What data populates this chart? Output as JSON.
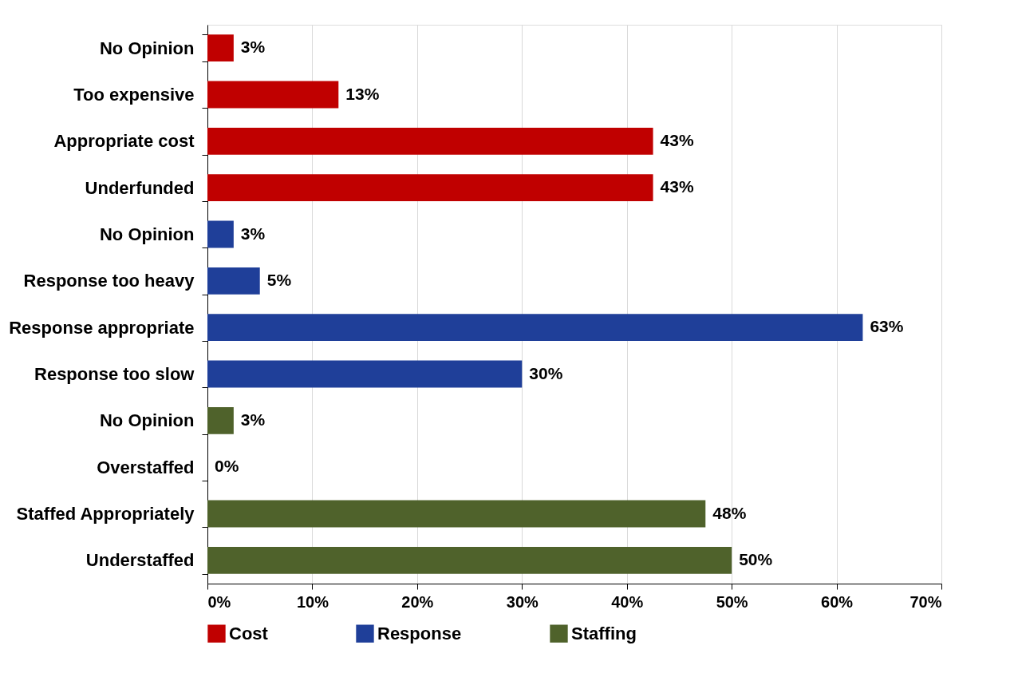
{
  "chart_data": {
    "type": "bar",
    "orientation": "horizontal",
    "categories": [
      "No Opinion",
      "Too expensive",
      "Appropriate cost",
      "Underfunded",
      "No Opinion",
      "Response too heavy",
      "Response appropriate",
      "Response too slow",
      "No Opinion",
      "Overstaffed",
      "Staffed Appropriately",
      "Understaffed"
    ],
    "series": [
      {
        "name": "Cost",
        "color": "#c00000",
        "values": [
          2.5,
          12.5,
          42.5,
          42.5,
          null,
          null,
          null,
          null,
          null,
          null,
          null,
          null
        ],
        "value_labels": [
          "3%",
          "13%",
          "43%",
          "43%",
          null,
          null,
          null,
          null,
          null,
          null,
          null,
          null
        ]
      },
      {
        "name": "Response",
        "color": "#1f3f99",
        "values": [
          null,
          null,
          null,
          null,
          2.5,
          5,
          62.5,
          30,
          null,
          null,
          null,
          null
        ],
        "value_labels": [
          null,
          null,
          null,
          null,
          "3%",
          "5%",
          "63%",
          "30%",
          null,
          null,
          null,
          null
        ]
      },
      {
        "name": "Staffing",
        "color": "#4f622b",
        "values": [
          null,
          null,
          null,
          null,
          null,
          null,
          null,
          null,
          2.5,
          0,
          47.5,
          50
        ],
        "value_labels": [
          null,
          null,
          null,
          null,
          null,
          null,
          null,
          null,
          "3%",
          "0%",
          "48%",
          "50%"
        ]
      }
    ],
    "xlim": [
      0,
      70
    ],
    "xticks": [
      {
        "value": 0,
        "label": "0%"
      },
      {
        "value": 10,
        "label": "10%"
      },
      {
        "value": 20,
        "label": "20%"
      },
      {
        "value": 30,
        "label": "30%"
      },
      {
        "value": 40,
        "label": "40%"
      },
      {
        "value": 50,
        "label": "50%"
      },
      {
        "value": 60,
        "label": "60%"
      },
      {
        "value": 70,
        "label": "70%"
      }
    ],
    "grid": "x",
    "legend": "bottom"
  }
}
